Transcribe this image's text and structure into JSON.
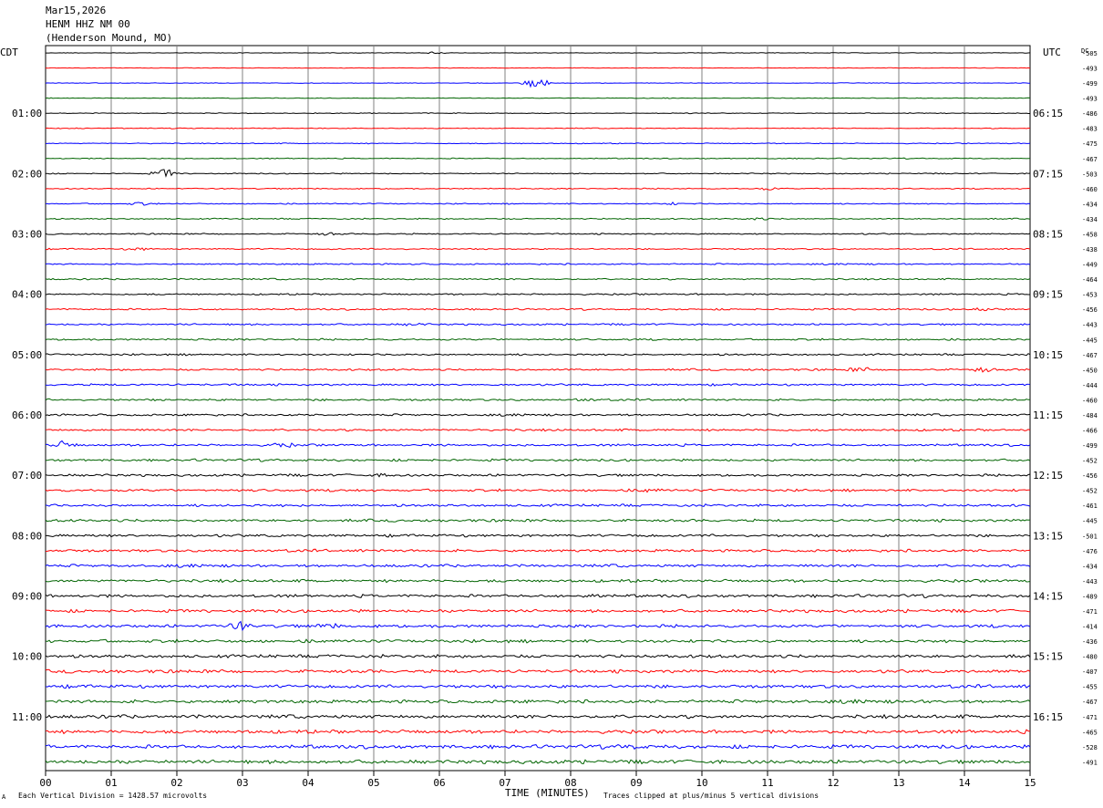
{
  "header": {
    "date": "Mar15,2026",
    "station": "HENM HHZ NM 00",
    "location": "(Henderson Mound, MO)"
  },
  "labels": {
    "left_zone": "CDT",
    "right_zone": "UTC",
    "dc": "DC",
    "xlabel": "TIME (MINUTES)",
    "scale_note": "Each Vertical Division = 1428.57 microvolts",
    "clip_note": "Traces clipped at plus/minus 5 vertical divisions",
    "corner_mark": "A"
  },
  "chart_data": {
    "type": "line",
    "title": "HENM HHZ NM 00",
    "xlabel": "TIME (MINUTES)",
    "xlim": [
      0,
      15
    ],
    "x_ticks": [
      "00",
      "01",
      "02",
      "03",
      "04",
      "05",
      "06",
      "07",
      "08",
      "09",
      "10",
      "11",
      "12",
      "13",
      "14",
      "15"
    ],
    "trace_minutes": 15,
    "trace_colors": [
      "#000000",
      "#ff0000",
      "#0000ff",
      "#006400"
    ],
    "left_hour_labels": [
      "01:00",
      "02:00",
      "03:00",
      "04:00",
      "05:00",
      "06:00",
      "07:00",
      "08:00",
      "09:00",
      "10:00",
      "11:00"
    ],
    "right_hour_labels": [
      "06:15",
      "07:15",
      "08:15",
      "09:15",
      "10:15",
      "11:15",
      "12:15",
      "13:15",
      "14:15",
      "15:15",
      "16:15"
    ],
    "dc_offsets": [
      -505,
      -493,
      -499,
      -493,
      -486,
      -483,
      -475,
      -467,
      -503,
      -460,
      -434,
      -434,
      -458,
      -438,
      -449,
      -464,
      -453,
      -456,
      -443,
      -445,
      -467,
      -450,
      -444,
      -460,
      -484,
      -466,
      -499,
      -452,
      -456,
      -452,
      -461,
      -445,
      -501,
      -476,
      -434,
      -443,
      -489,
      -471,
      -414,
      -436,
      -480,
      -407,
      -455,
      -467,
      -471,
      -465,
      -528,
      -491
    ],
    "events": [
      {
        "trace": 0,
        "minute": 5.9,
        "amp": 0.9
      },
      {
        "trace": 2,
        "minute": 7.45,
        "amp": 4.5
      },
      {
        "trace": 8,
        "minute": 1.8,
        "amp": 3.0
      },
      {
        "trace": 9,
        "minute": 11.0,
        "amp": 0.8
      },
      {
        "trace": 10,
        "minute": 1.45,
        "amp": 1.0
      },
      {
        "trace": 10,
        "minute": 9.5,
        "amp": 0.8
      },
      {
        "trace": 11,
        "minute": 10.8,
        "amp": 0.9
      },
      {
        "trace": 12,
        "minute": 4.3,
        "amp": 0.8
      },
      {
        "trace": 13,
        "minute": 1.4,
        "amp": 1.0
      },
      {
        "trace": 17,
        "minute": 14.3,
        "amp": 1.2
      },
      {
        "trace": 18,
        "minute": 5.6,
        "amp": 0.8
      },
      {
        "trace": 21,
        "minute": 12.4,
        "amp": 1.4
      },
      {
        "trace": 21,
        "minute": 14.25,
        "amp": 1.6
      },
      {
        "trace": 23,
        "minute": 8.2,
        "amp": 0.9
      },
      {
        "trace": 26,
        "minute": 0.25,
        "amp": 2.0
      },
      {
        "trace": 26,
        "minute": 3.6,
        "amp": 1.4
      },
      {
        "trace": 28,
        "minute": 5.2,
        "amp": 0.9
      },
      {
        "trace": 29,
        "minute": 9.2,
        "amp": 1.0
      },
      {
        "trace": 36,
        "minute": 8.35,
        "amp": 1.0
      },
      {
        "trace": 38,
        "minute": 2.95,
        "amp": 3.2
      },
      {
        "trace": 38,
        "minute": 4.3,
        "amp": 1.4
      },
      {
        "trace": 46,
        "minute": 8.9,
        "amp": 1.2
      }
    ]
  }
}
